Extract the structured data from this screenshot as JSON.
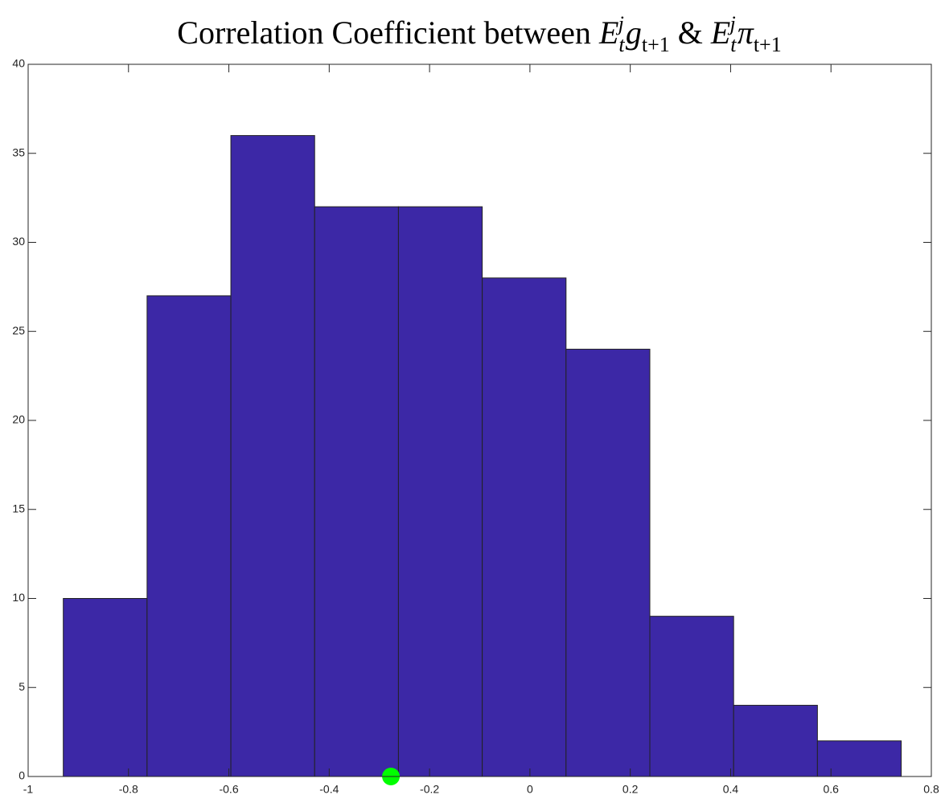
{
  "chart_data": {
    "type": "histogram",
    "title": [
      "Correlation Coefficient between ",
      "E",
      "t",
      "j",
      "g",
      "t+1",
      " & ",
      "E",
      "t",
      "j",
      "π",
      "t+1"
    ],
    "bins": [
      -0.93,
      -0.763,
      -0.596,
      -0.429,
      -0.262,
      -0.095,
      0.072,
      0.239,
      0.406,
      0.573,
      0.74
    ],
    "values": [
      10,
      27,
      36,
      32,
      32,
      28,
      24,
      9,
      4,
      2
    ],
    "color": "#3c28a6",
    "marker": {
      "x": -0.277,
      "y": 0,
      "color": "#00ff00"
    },
    "xlim": [
      -1,
      0.8
    ],
    "xticks": [
      -1,
      -0.8,
      -0.6,
      -0.4,
      -0.2,
      0,
      0.2,
      0.4,
      0.6,
      0.8
    ],
    "ylim": [
      0,
      40
    ],
    "yticks": [
      0,
      5,
      10,
      15,
      20,
      25,
      30,
      35,
      40
    ],
    "grid": false
  }
}
